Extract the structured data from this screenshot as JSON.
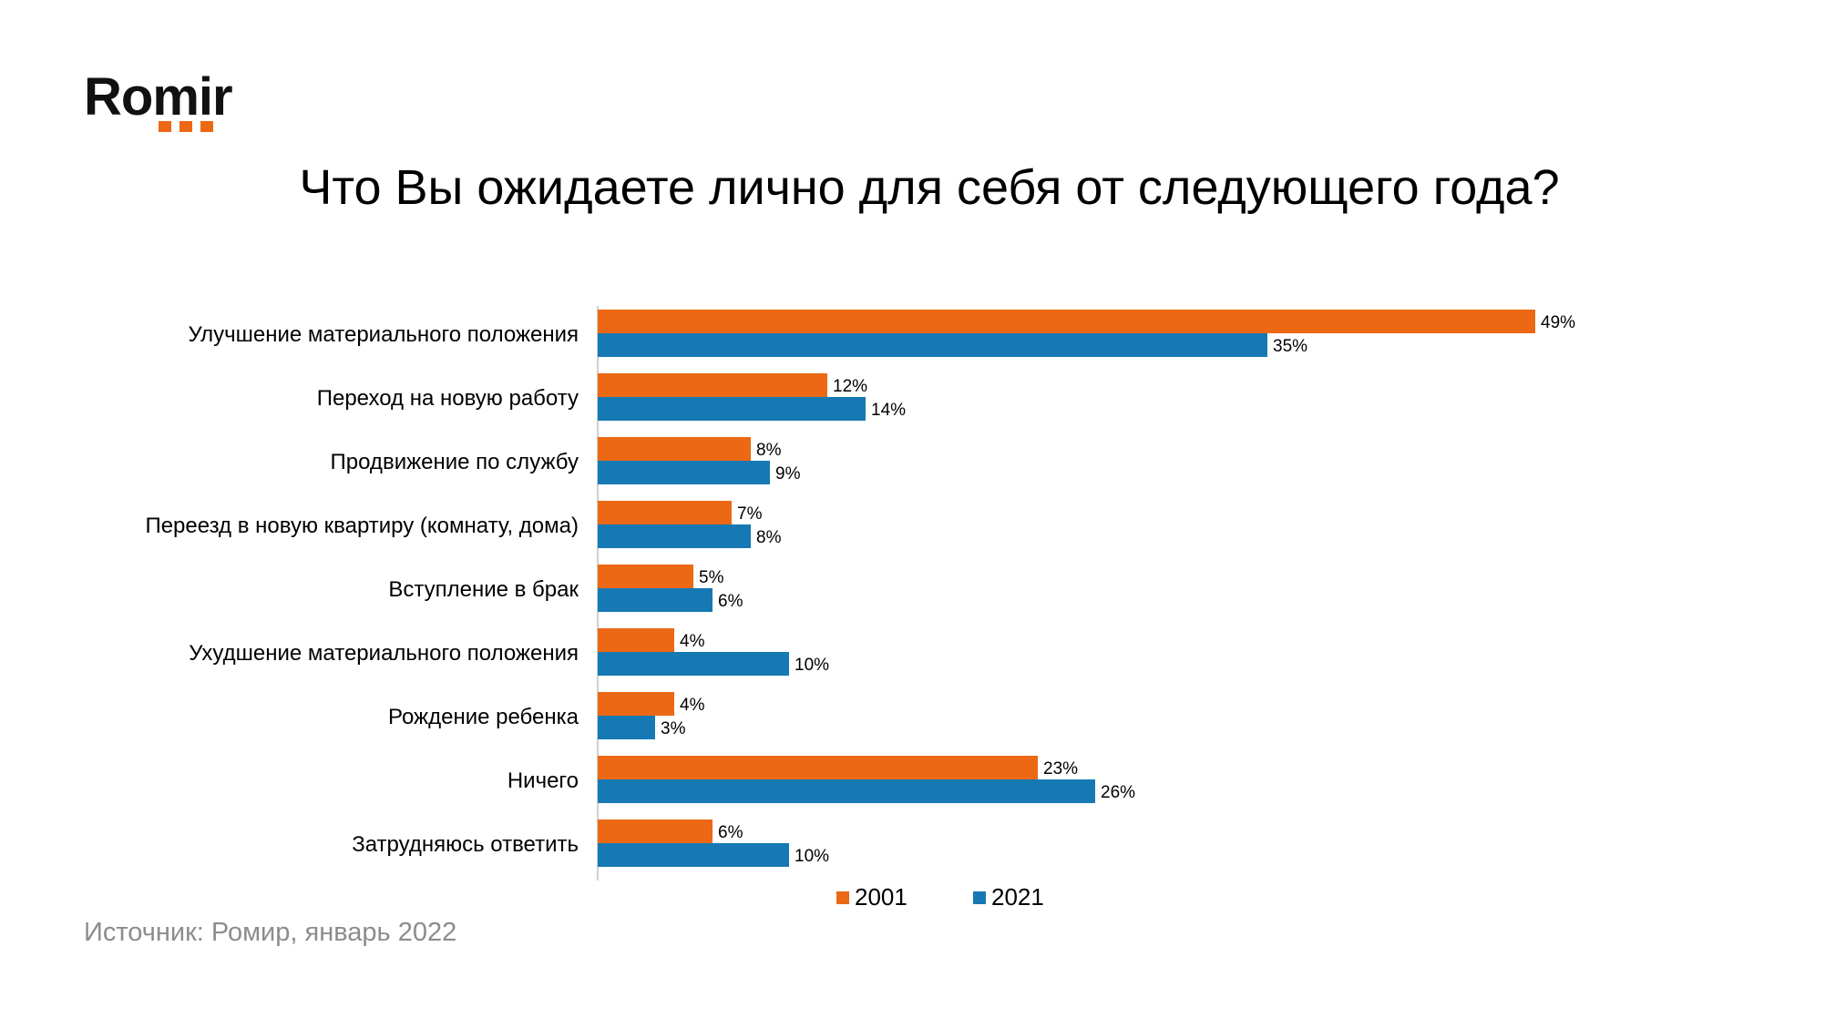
{
  "brand": {
    "name": "Romir",
    "dot_color": "#ec6814"
  },
  "source": "Источник: Ромир, январь 2022",
  "chart_data": {
    "type": "bar",
    "orientation": "horizontal",
    "title": "Что Вы ожидаете лично для себя от следующего года?",
    "categories": [
      "Улучшение материального положения",
      "Переход на новую работу",
      "Продвижение по службу",
      "Переезд в новую квартиру (комнату, дома)",
      "Вступление в брак",
      "Ухудшение материального положения",
      "Рождение ребенка",
      "Ничего",
      "Затрудняюсь ответить"
    ],
    "series": [
      {
        "name": "2001",
        "color": "#ec6814",
        "values": [
          49,
          12,
          8,
          7,
          5,
          4,
          4,
          23,
          6
        ]
      },
      {
        "name": "2021",
        "color": "#1679b3",
        "values": [
          35,
          14,
          9,
          8,
          6,
          10,
          3,
          26,
          10
        ]
      }
    ],
    "value_suffix": "%",
    "xlim": [
      0,
      50
    ],
    "grid": false,
    "legend_position": "bottom-center"
  }
}
